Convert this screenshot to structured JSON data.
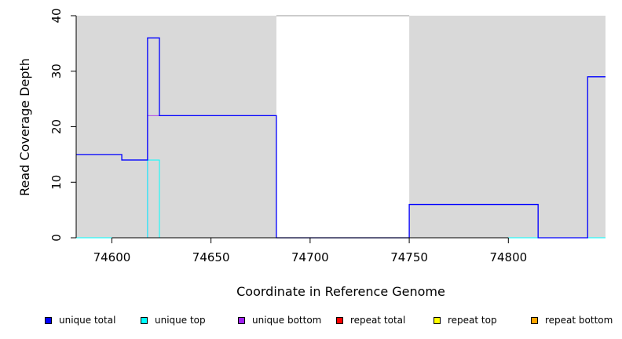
{
  "chart_data": {
    "type": "line",
    "xlabel": "Coordinate in Reference Genome",
    "ylabel": "Read Coverage Depth",
    "xlim": [
      74582,
      74849
    ],
    "ylim": [
      0,
      40
    ],
    "x_ticks": [
      74600,
      74650,
      74700,
      74750,
      74800
    ],
    "y_ticks": [
      0,
      10,
      20,
      30,
      40
    ],
    "background": "#d9d9d9",
    "unshaded_regions": [
      [
        74683,
        74750
      ]
    ],
    "series": [
      {
        "name": "unique total",
        "color": "#0000ff",
        "points": [
          [
            74582,
            15
          ],
          [
            74605,
            15
          ],
          [
            74605,
            14
          ],
          [
            74618,
            14
          ],
          [
            74618,
            36
          ],
          [
            74624,
            36
          ],
          [
            74624,
            22
          ],
          [
            74683,
            22
          ],
          [
            74683,
            0
          ],
          [
            74750,
            0
          ],
          [
            74750,
            6
          ],
          [
            74815,
            6
          ],
          [
            74815,
            0
          ],
          [
            74840,
            0
          ],
          [
            74840,
            29
          ],
          [
            74849,
            29
          ]
        ]
      },
      {
        "name": "unique top",
        "color": "#00ffff",
        "points": [
          [
            74582,
            0
          ],
          [
            74618,
            0
          ],
          [
            74618,
            14
          ],
          [
            74624,
            14
          ],
          [
            74624,
            0
          ],
          [
            74849,
            0
          ]
        ]
      },
      {
        "name": "unique bottom",
        "color": "#a020f0",
        "points": [
          [
            74582,
            0
          ],
          [
            74618,
            0
          ],
          [
            74618,
            22
          ],
          [
            74624,
            22
          ],
          [
            74624,
            22
          ],
          [
            74683,
            22
          ],
          [
            74683,
            0
          ],
          [
            74750,
            0
          ],
          [
            74750,
            6
          ],
          [
            74815,
            6
          ],
          [
            74815,
            0
          ],
          [
            74849,
            0
          ]
        ]
      },
      {
        "name": "repeat total",
        "color": "#ff0000",
        "points": [
          [
            74582,
            0
          ],
          [
            74849,
            0
          ]
        ]
      },
      {
        "name": "repeat top",
        "color": "#ffff00",
        "points": [
          [
            74582,
            0
          ],
          [
            74849,
            0
          ]
        ]
      },
      {
        "name": "repeat bottom",
        "color": "#ffa500",
        "points": [
          [
            74582,
            0
          ],
          [
            74849,
            0
          ]
        ]
      }
    ]
  },
  "legend": {
    "items": [
      {
        "label": "unique total",
        "color": "#0000ff"
      },
      {
        "label": "unique top",
        "color": "#00ffff"
      },
      {
        "label": "unique bottom",
        "color": "#a020f0"
      },
      {
        "label": "repeat total",
        "color": "#ff0000"
      },
      {
        "label": "repeat top",
        "color": "#ffff00"
      },
      {
        "label": "repeat bottom",
        "color": "#ffa500"
      }
    ]
  }
}
